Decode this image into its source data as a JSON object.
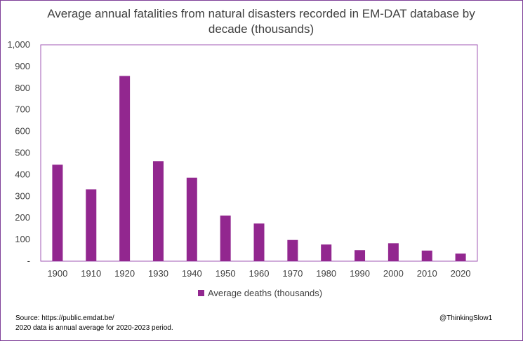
{
  "chart_data": {
    "type": "bar",
    "title": "Average annual fatalities from natural disasters recorded in EM-DAT database by decade (thousands)",
    "title_lines": [
      "Average annual fatalities  from natural disasters recorded in EM-DAT database by",
      "decade (thousands)"
    ],
    "categories": [
      "1900",
      "1910",
      "1920",
      "1930",
      "1940",
      "1950",
      "1960",
      "1970",
      "1980",
      "1990",
      "2000",
      "2010",
      "2020"
    ],
    "series": [
      {
        "name": "Average deaths (thousands)",
        "values": [
          446,
          332,
          856,
          462,
          386,
          211,
          174,
          98,
          77,
          51,
          83,
          49,
          35
        ],
        "color": "#92278f"
      }
    ],
    "yticks": [
      {
        "value": 0,
        "label": "-"
      },
      {
        "value": 100,
        "label": "100"
      },
      {
        "value": 200,
        "label": "200"
      },
      {
        "value": 300,
        "label": "300"
      },
      {
        "value": 400,
        "label": "400"
      },
      {
        "value": 500,
        "label": "500"
      },
      {
        "value": 600,
        "label": "600"
      },
      {
        "value": 700,
        "label": "700"
      },
      {
        "value": 800,
        "label": "800"
      },
      {
        "value": 900,
        "label": "900"
      },
      {
        "value": 1000,
        "label": "1,000"
      }
    ],
    "ylim": [
      0,
      1000
    ],
    "grid": false,
    "legend_position": "bottom-center",
    "xlabel": "",
    "ylabel": ""
  },
  "footer": {
    "source": "Source:  https://public.emdat.be/",
    "note": "2020 data is annual average for 2020-2023 period.",
    "credit": "@ThinkingSlow1"
  },
  "colors": {
    "bar": "#92278f",
    "frame_border": "#7f3f98",
    "axis_frame": "#a25ab5"
  }
}
